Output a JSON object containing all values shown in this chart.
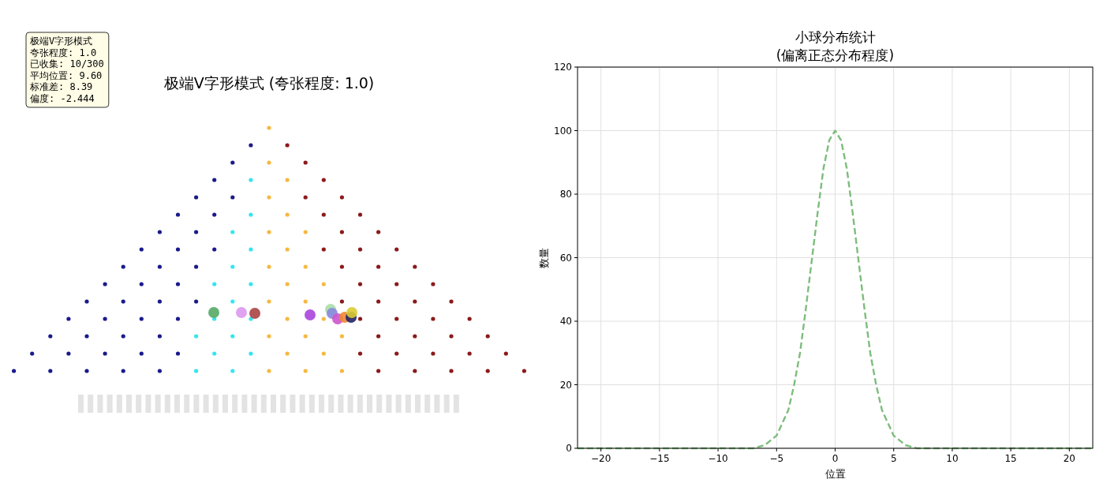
{
  "chart_data": [
    {
      "type": "other",
      "title": "极端V字形模式 (夸张程度: 1.0)",
      "annotations": [
        "极端V字形模式",
        "夸张程度: 1.0",
        "已收集: 10/300",
        "平均位置: 9.60",
        "标准差: 8.39",
        "偏度: -2.444"
      ]
    },
    {
      "type": "line",
      "title": "小球分布统计",
      "subtitle": "(偏离正态分布程度)",
      "xlabel": "位置",
      "ylabel": "数量",
      "x": [
        -22,
        -10,
        -7,
        -6,
        -5,
        -4,
        -3.5,
        -3,
        -2.5,
        -2,
        -1.5,
        -1,
        -0.5,
        0,
        0.5,
        1,
        1.5,
        2,
        2.5,
        3,
        3.5,
        4,
        5,
        6,
        7,
        10,
        22
      ],
      "series": [
        {
          "color": "#7dbd7d",
          "values": [
            0,
            0,
            0,
            1,
            4,
            12,
            20,
            30,
            44,
            59,
            74,
            88,
            97,
            100,
            97,
            88,
            74,
            59,
            44,
            30,
            20,
            12,
            4,
            1,
            0,
            0,
            0
          ]
        }
      ],
      "xlim": [
        -22,
        22
      ],
      "xticks": [
        {
          "value": -20,
          "label": "−20"
        },
        {
          "value": -15,
          "label": "−15"
        },
        {
          "value": -10,
          "label": "−10"
        },
        {
          "value": -5,
          "label": "−5"
        },
        0,
        5,
        10,
        15,
        20
      ],
      "ylim": [
        0,
        120
      ],
      "yticks": [
        0,
        20,
        40,
        60,
        80,
        100,
        120
      ],
      "grid": true,
      "line_style": "dashed"
    }
  ]
}
